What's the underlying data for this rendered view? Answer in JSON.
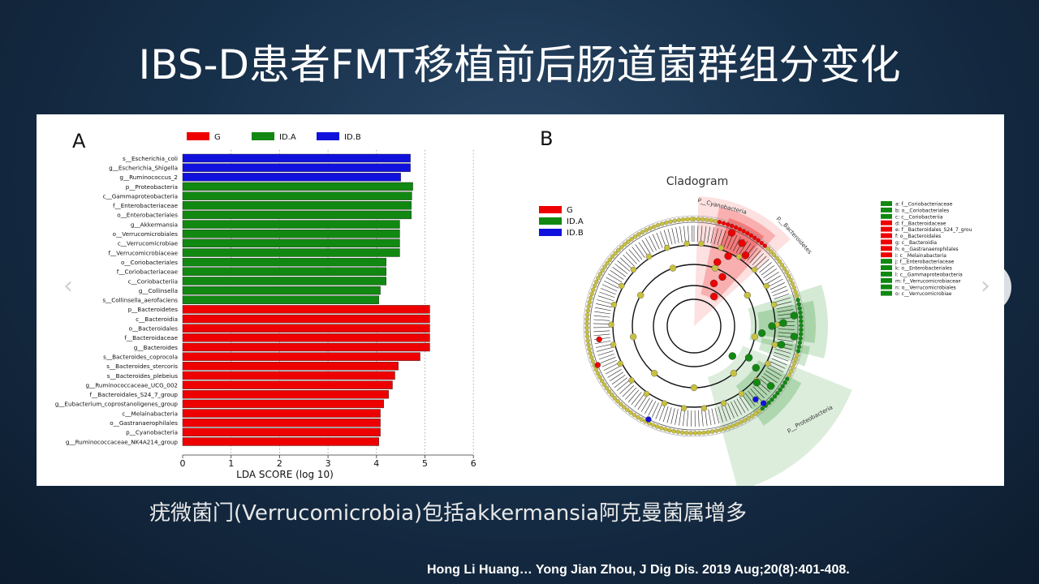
{
  "slide": {
    "title": "IBS-D患者FMT移植前后肠道菌群组分变化",
    "caption": "疣微菌门(Verrucomicrobia)包括akkermansia阿克曼菌属增多",
    "citation": "Hong Li Huang… Yong Jian Zhou, J Dig Dis. 2019 Aug;20(8):401-408.",
    "nav_prev": "‹",
    "nav_next": "›"
  },
  "colors": {
    "G": "#ee0000",
    "ID.A": "#118811",
    "ID.B": "#1111dd"
  },
  "chart_data": [
    {
      "type": "bar",
      "orientation": "horizontal",
      "panel_label": "A",
      "xlabel": "LDA SCORE (log 10)",
      "xlim": [
        0,
        6
      ],
      "xticks": [
        0,
        1,
        2,
        3,
        4,
        5,
        6
      ],
      "legend": [
        "G",
        "ID.A",
        "ID.B"
      ],
      "bars": [
        {
          "label": "s__Escherichia_coli",
          "group": "ID.B",
          "value": 4.7
        },
        {
          "label": "g__Escherichia_Shigella",
          "group": "ID.B",
          "value": 4.7
        },
        {
          "label": "g__Ruminococcus_2",
          "group": "ID.B",
          "value": 4.5
        },
        {
          "label": "p__Proteobacteria",
          "group": "ID.A",
          "value": 4.75
        },
        {
          "label": "c__Gammaproteobacteria",
          "group": "ID.A",
          "value": 4.73
        },
        {
          "label": "f__Enterobacteriaceae",
          "group": "ID.A",
          "value": 4.72
        },
        {
          "label": "o__Enterobacteriales",
          "group": "ID.A",
          "value": 4.72
        },
        {
          "label": "g__Akkermansia",
          "group": "ID.A",
          "value": 4.48
        },
        {
          "label": "o__Verrucomicrobiales",
          "group": "ID.A",
          "value": 4.48
        },
        {
          "label": "c__Verrucomicrobiae",
          "group": "ID.A",
          "value": 4.48
        },
        {
          "label": "f__Verrucomicrobiaceae",
          "group": "ID.A",
          "value": 4.48
        },
        {
          "label": "o__Coriobacteriales",
          "group": "ID.A",
          "value": 4.2
        },
        {
          "label": "f__Coriobacteriaceae",
          "group": "ID.A",
          "value": 4.2
        },
        {
          "label": "c__Coriobacteriia",
          "group": "ID.A",
          "value": 4.2
        },
        {
          "label": "g__Collinsella",
          "group": "ID.A",
          "value": 4.08
        },
        {
          "label": "s__Collinsella_aerofaciens",
          "group": "ID.A",
          "value": 4.05
        },
        {
          "label": "p__Bacteroidetes",
          "group": "G",
          "value": 5.1
        },
        {
          "label": "c__Bacteroidia",
          "group": "G",
          "value": 5.1
        },
        {
          "label": "o__Bacteroidales",
          "group": "G",
          "value": 5.1
        },
        {
          "label": "f__Bacteroidaceae",
          "group": "G",
          "value": 5.1
        },
        {
          "label": "g__Bacteroides",
          "group": "G",
          "value": 5.1
        },
        {
          "label": "s__Bacteroides_coprocola",
          "group": "G",
          "value": 4.9
        },
        {
          "label": "s__Bacteroides_stercoris",
          "group": "G",
          "value": 4.45
        },
        {
          "label": "s__Bacteroides_plebeius",
          "group": "G",
          "value": 4.38
        },
        {
          "label": "g__Ruminococcaceae_UCG_002",
          "group": "G",
          "value": 4.33
        },
        {
          "label": "f__Bacteroidales_S24_7_group",
          "group": "G",
          "value": 4.25
        },
        {
          "label": "g__Eubacterium_coprostanoligenes_group",
          "group": "G",
          "value": 4.15
        },
        {
          "label": "c__Melainabacteria",
          "group": "G",
          "value": 4.08
        },
        {
          "label": "o__Gastranaerophilales",
          "group": "G",
          "value": 4.08
        },
        {
          "label": "p__Cyanobacteria",
          "group": "G",
          "value": 4.08
        },
        {
          "label": "g__Ruminococcaceae_NK4A214_group",
          "group": "G",
          "value": 4.05
        }
      ]
    },
    {
      "type": "cladogram",
      "panel_label": "B",
      "title": "Cladogram",
      "legend": [
        "G",
        "ID.A",
        "ID.B"
      ],
      "clade_labels": [
        "P__Cyanobacteria",
        "p__Bacteroidetes",
        "p__Proteobacteria"
      ],
      "key": [
        {
          "text": "a: f__Coriobacteriaceae",
          "group": "ID.A"
        },
        {
          "text": "b: o__Coriobacteriales",
          "group": "ID.A"
        },
        {
          "text": "c: c__Coriobacteriia",
          "group": "ID.A"
        },
        {
          "text": "d: f__Bacteroidaceae",
          "group": "G"
        },
        {
          "text": "e: f__Bacteroidales_S24_7_grou",
          "group": "G"
        },
        {
          "text": "f: o__Bacteroidales",
          "group": "G"
        },
        {
          "text": "g: c__Bacteroidia",
          "group": "G"
        },
        {
          "text": "h: o__Gastranaerophilales",
          "group": "G"
        },
        {
          "text": "i: c__Melainabacteria",
          "group": "G"
        },
        {
          "text": "j: f__Enterobacteriaceae",
          "group": "ID.A"
        },
        {
          "text": "k: o__Enterobacteriales",
          "group": "ID.A"
        },
        {
          "text": "l: c__Gammaproteobacteria",
          "group": "ID.A"
        },
        {
          "text": "m: f__Verrucomicrobiaceae",
          "group": "ID.A"
        },
        {
          "text": "n: o__Verrucomicrobiales",
          "group": "ID.A"
        },
        {
          "text": "o: c__Verrucomicrobiae",
          "group": "ID.A"
        }
      ]
    }
  ]
}
